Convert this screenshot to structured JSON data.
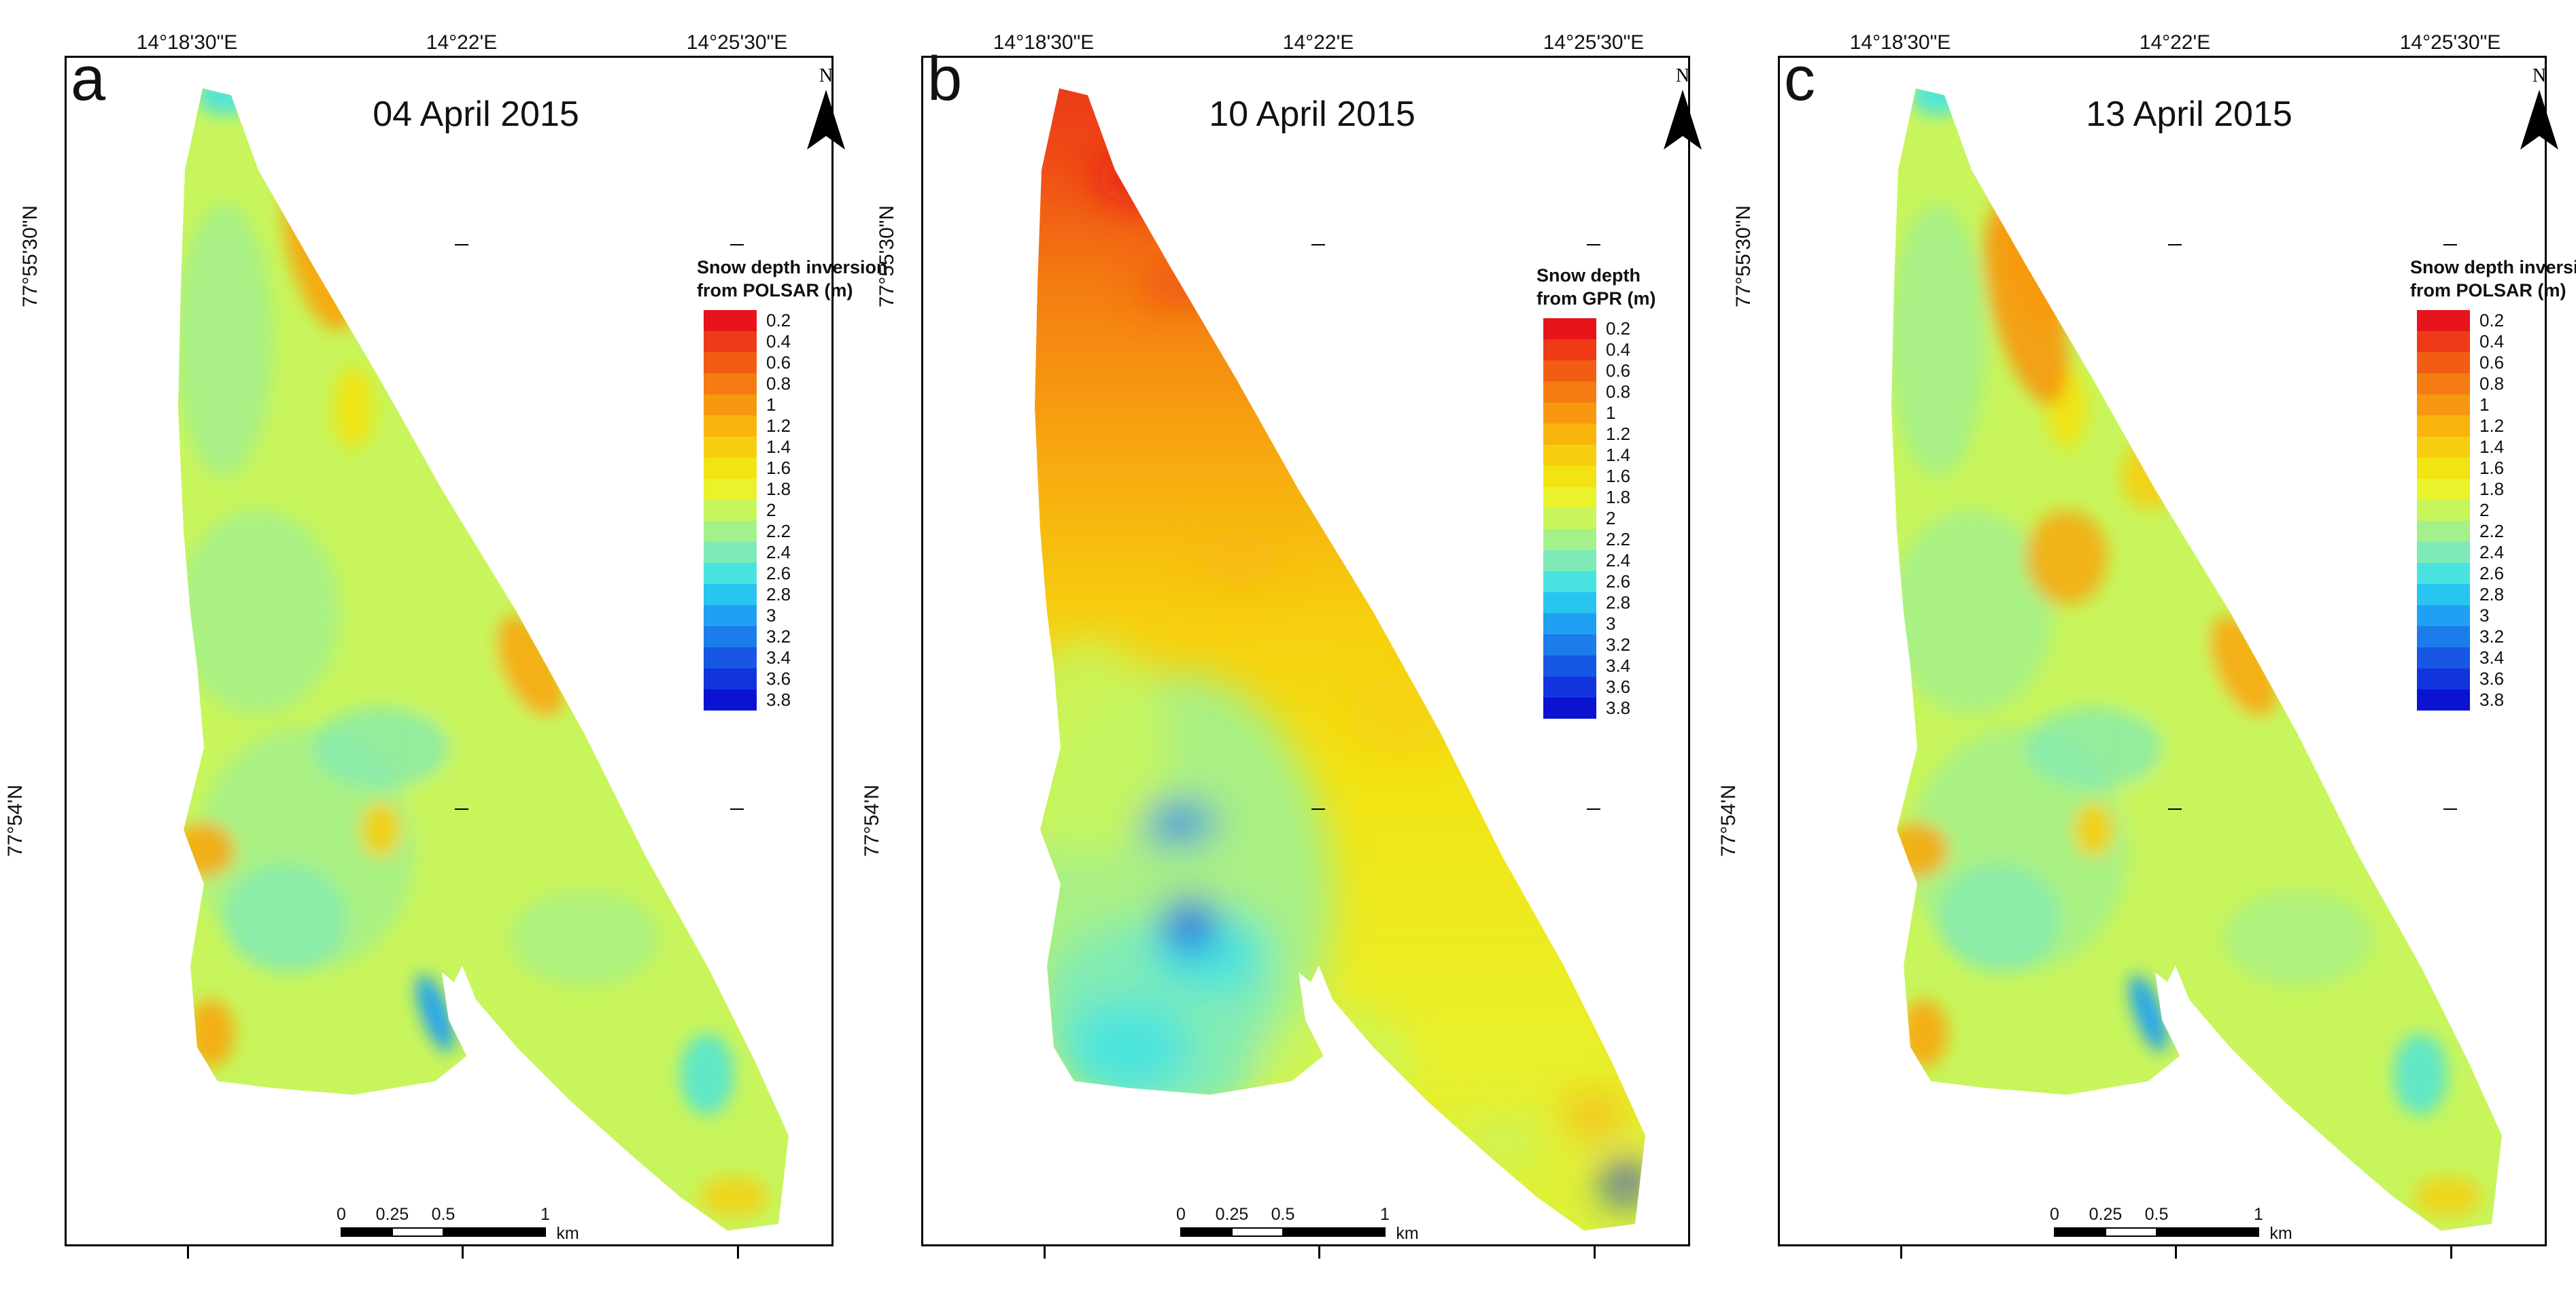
{
  "axis": {
    "lon_ticks": [
      "14°18'30\"E",
      "14°22'E",
      "14°25'30\"E"
    ],
    "lat_ticks": [
      "77°55'30\"N",
      "77°54'N"
    ]
  },
  "north_label": "N",
  "scale_bar": {
    "labels": [
      "0",
      "0.25",
      "0.5",
      "1"
    ],
    "unit": "km"
  },
  "panels": [
    {
      "letter": "a",
      "date": "04 April 2015",
      "legend_title": [
        "Snow depth inversion",
        "from POLSAR (m)"
      ],
      "variant": "polsar"
    },
    {
      "letter": "b",
      "date": "10 April 2015",
      "legend_title": [
        "Snow depth",
        "from GPR (m)"
      ],
      "variant": "gpr"
    },
    {
      "letter": "c",
      "date": "13 April 2015",
      "legend_title": [
        "Snow depth inversion",
        "from POLSAR (m)"
      ],
      "variant": "polsar2"
    }
  ],
  "legend_classes": [
    "0.2",
    "0.4",
    "0.6",
    "0.8",
    "1",
    "1.2",
    "1.4",
    "1.6",
    "1.8",
    "2",
    "2.2",
    "2.4",
    "2.6",
    "2.8",
    "3",
    "3.2",
    "3.4",
    "3.6",
    "3.8"
  ],
  "legend_colors": [
    "#e8141c",
    "#ef3a17",
    "#f25d14",
    "#f47c12",
    "#f79810",
    "#f9b40e",
    "#f7ce0f",
    "#f2e313",
    "#e9f22a",
    "#c8f55c",
    "#a4f08a",
    "#7deab8",
    "#48e3e0",
    "#27c5f0",
    "#1fa0f2",
    "#1b7ceb",
    "#1657e3",
    "#1234dc",
    "#0b13d3"
  ]
}
